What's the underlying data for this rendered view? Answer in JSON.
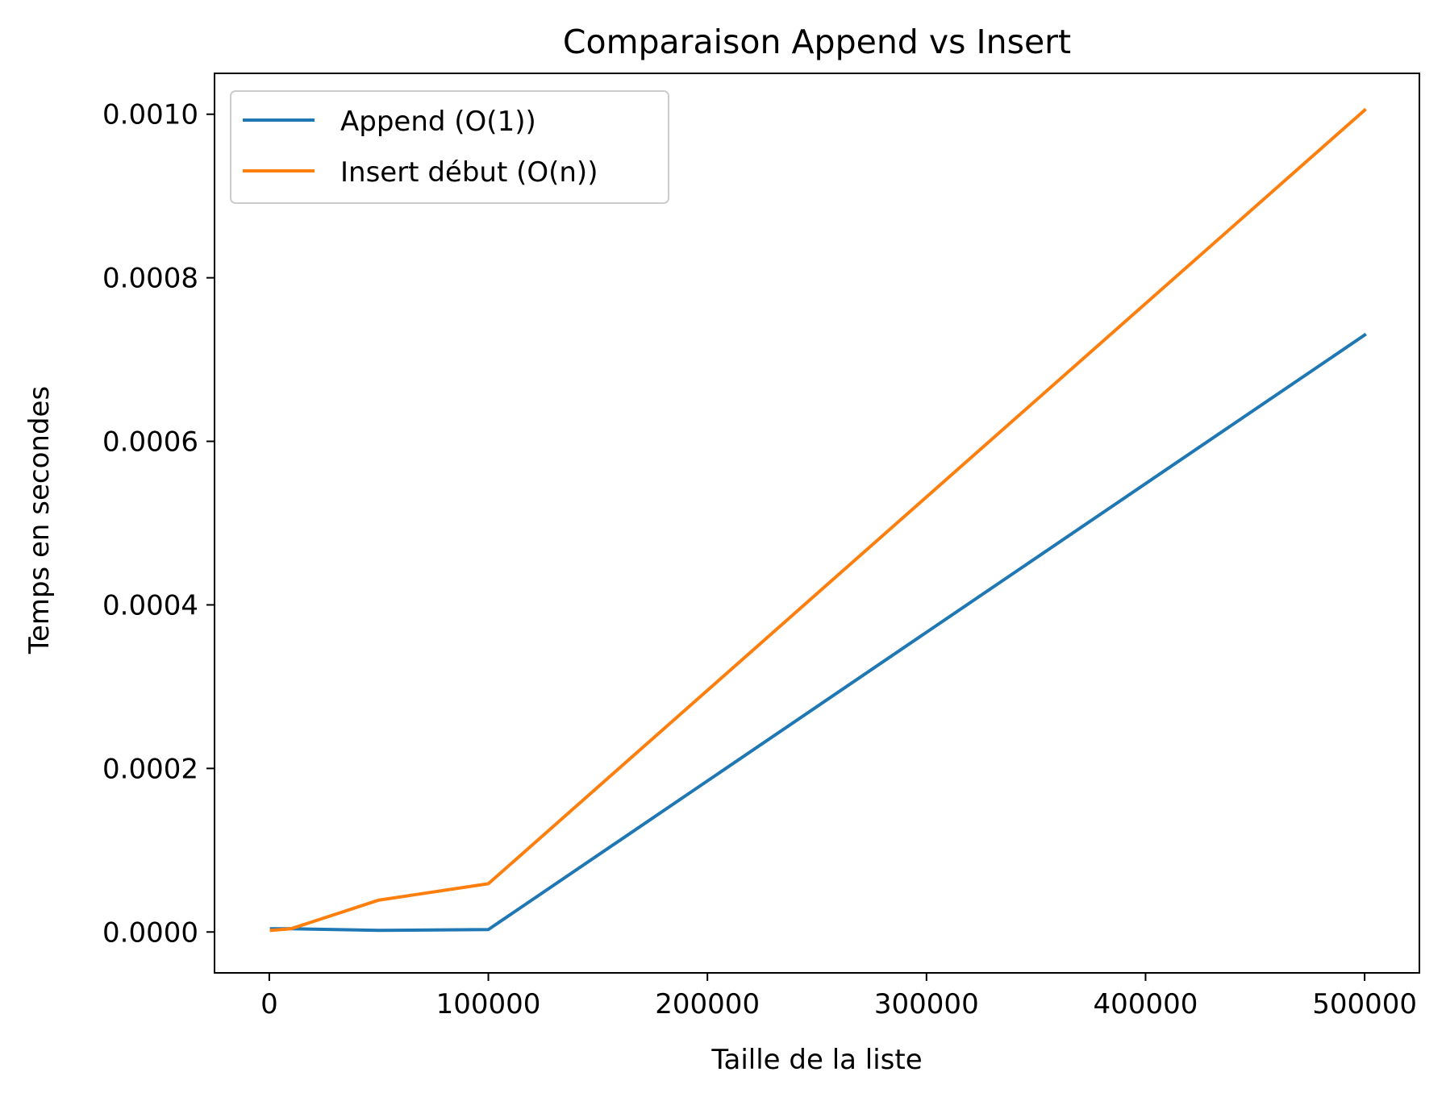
{
  "chart_data": {
    "type": "line",
    "title": "Comparaison Append vs Insert",
    "xlabel": "Taille de la liste",
    "ylabel": "Temps en secondes",
    "xlim": [
      -25000,
      525000
    ],
    "ylim": [
      -5e-05,
      0.00105
    ],
    "xticks": [
      0,
      100000,
      200000,
      300000,
      400000,
      500000
    ],
    "xtick_labels": [
      "0",
      "100000",
      "200000",
      "300000",
      "400000",
      "500000"
    ],
    "yticks": [
      0.0,
      0.0002,
      0.0004,
      0.0006,
      0.0008,
      0.001
    ],
    "ytick_labels": [
      "0.0000",
      "0.0002",
      "0.0004",
      "0.0006",
      "0.0008",
      "0.0010"
    ],
    "grid": false,
    "legend_position": "upper-left",
    "series": [
      {
        "name": "Append (O(1))",
        "color": "#1f77b4",
        "x": [
          1000,
          10000,
          50000,
          100000,
          500000
        ],
        "y": [
          4e-06,
          4e-06,
          2e-06,
          3e-06,
          0.00073
        ]
      },
      {
        "name": "Insert début (O(n))",
        "color": "#ff7f0e",
        "x": [
          1000,
          10000,
          50000,
          100000,
          500000
        ],
        "y": [
          2e-06,
          4e-06,
          3.9e-05,
          5.9e-05,
          0.001005
        ]
      }
    ]
  }
}
